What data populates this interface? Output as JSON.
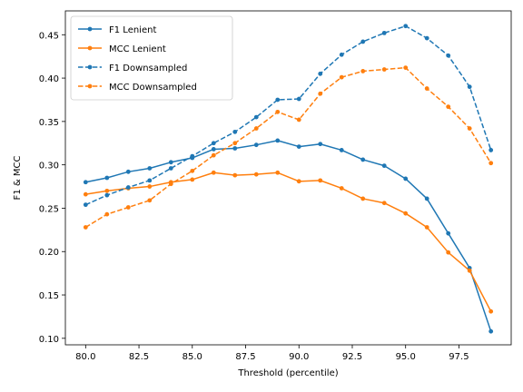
{
  "chart_data": {
    "type": "line",
    "xlabel": "Threshold (percentile)",
    "ylabel": "F1 & MCC",
    "xlim": [
      79.05,
      99.95
    ],
    "ylim": [
      0.0925,
      0.4775
    ],
    "xticks": [
      80.0,
      82.5,
      85.0,
      87.5,
      90.0,
      92.5,
      95.0,
      97.5
    ],
    "xtick_labels": [
      "80.0",
      "82.5",
      "85.0",
      "87.5",
      "90.0",
      "92.5",
      "95.0",
      "97.5"
    ],
    "yticks": [
      0.1,
      0.15,
      0.2,
      0.25,
      0.3,
      0.35,
      0.4,
      0.45
    ],
    "ytick_labels": [
      "0.10",
      "0.15",
      "0.20",
      "0.25",
      "0.30",
      "0.35",
      "0.40",
      "0.45"
    ],
    "grid": false,
    "legend_position": "top-left",
    "x": [
      80,
      81,
      82,
      83,
      84,
      85,
      86,
      87,
      88,
      89,
      90,
      91,
      92,
      93,
      94,
      95,
      96,
      97,
      98,
      99
    ],
    "series": [
      {
        "name": "F1 Lenient",
        "color": "#1f77b4",
        "dashed": false,
        "values": [
          0.28,
          0.285,
          0.292,
          0.296,
          0.303,
          0.308,
          0.318,
          0.319,
          0.323,
          0.328,
          0.321,
          0.324,
          0.317,
          0.306,
          0.299,
          0.284,
          0.261,
          0.221,
          0.181,
          0.108
        ]
      },
      {
        "name": "MCC Lenient",
        "color": "#ff7f0e",
        "dashed": false,
        "values": [
          0.266,
          0.27,
          0.273,
          0.275,
          0.28,
          0.283,
          0.291,
          0.288,
          0.289,
          0.291,
          0.281,
          0.282,
          0.273,
          0.261,
          0.256,
          0.244,
          0.228,
          0.199,
          0.178,
          0.131
        ]
      },
      {
        "name": "F1 Downsampled",
        "color": "#1f77b4",
        "dashed": true,
        "values": [
          0.254,
          0.265,
          0.274,
          0.282,
          0.296,
          0.31,
          0.325,
          0.338,
          0.355,
          0.375,
          0.376,
          0.405,
          0.427,
          0.442,
          0.452,
          0.46,
          0.446,
          0.426,
          0.39,
          0.317
        ]
      },
      {
        "name": "MCC Downsampled",
        "color": "#ff7f0e",
        "dashed": true,
        "values": [
          0.228,
          0.243,
          0.251,
          0.259,
          0.278,
          0.293,
          0.311,
          0.325,
          0.342,
          0.361,
          0.352,
          0.382,
          0.401,
          0.408,
          0.41,
          0.412,
          0.388,
          0.367,
          0.342,
          0.302
        ]
      }
    ]
  }
}
